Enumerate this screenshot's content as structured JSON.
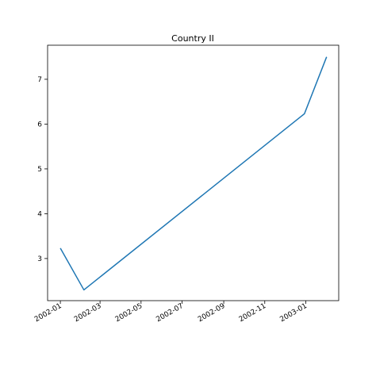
{
  "chart_data": {
    "type": "line",
    "title": "Country II",
    "xlabel": "",
    "ylabel": "",
    "x_type": "date",
    "xlim": [
      "2001-12-13",
      "2003-02-19"
    ],
    "ylim": [
      2.06,
      7.76
    ],
    "grid": false,
    "x_ticks": [
      {
        "value": "2002-01-01",
        "label": "2002-01"
      },
      {
        "value": "2002-03-01",
        "label": "2002-03"
      },
      {
        "value": "2002-05-01",
        "label": "2002-05"
      },
      {
        "value": "2002-07-01",
        "label": "2002-07"
      },
      {
        "value": "2002-09-01",
        "label": "2002-09"
      },
      {
        "value": "2002-11-01",
        "label": "2002-11"
      },
      {
        "value": "2003-01-01",
        "label": "2003-01"
      }
    ],
    "y_ticks": [
      {
        "value": 3,
        "label": "3"
      },
      {
        "value": 4,
        "label": "4"
      },
      {
        "value": 5,
        "label": "5"
      },
      {
        "value": 6,
        "label": "6"
      },
      {
        "value": 7,
        "label": "7"
      }
    ],
    "series": [
      {
        "color": "#1f77b4",
        "points": [
          {
            "x": "2002-01-01",
            "y": 3.23
          },
          {
            "x": "2002-02-05",
            "y": 2.3
          },
          {
            "x": "2002-12-30",
            "y": 6.23
          },
          {
            "x": "2003-02-01",
            "y": 7.5
          }
        ]
      }
    ]
  }
}
